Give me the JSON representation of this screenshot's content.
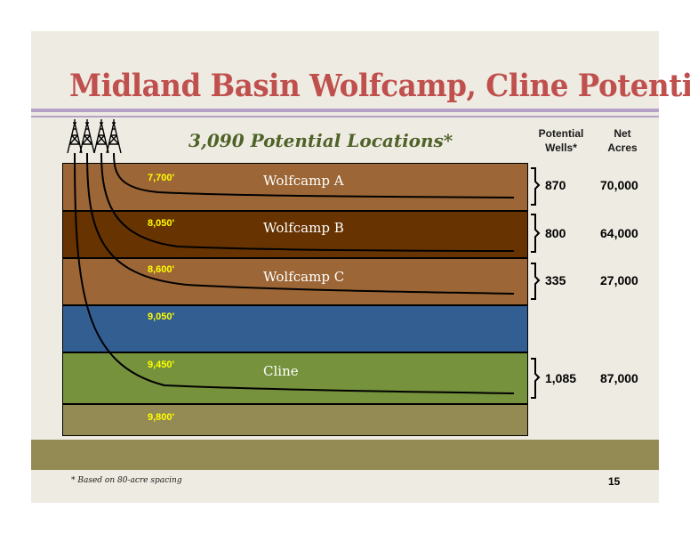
{
  "title": "Midland Basin Wolfcamp, Cline Potential",
  "subtitle": "3,090 Potential Locations*",
  "columns": {
    "potential_wells": [
      "Potential",
      "Wells*"
    ],
    "net_acres": [
      "Net",
      "Acres"
    ]
  },
  "layers": [
    {
      "depth": "7,700'",
      "zone": "Wolfcamp A",
      "color": "#9c6636",
      "wells": "870",
      "acres": "70,000"
    },
    {
      "depth": "8,050'",
      "zone": "Wolfcamp B",
      "color": "#673300",
      "wells": "800",
      "acres": "64,000"
    },
    {
      "depth": "8,600'",
      "zone": "Wolfcamp C",
      "color": "#9c6636",
      "wells": "335",
      "acres": "27,000"
    },
    {
      "depth": "9,050'",
      "zone": "",
      "color": "#325e92",
      "wells": "",
      "acres": ""
    },
    {
      "depth": "9,450'",
      "zone": "Cline",
      "color": "#76923c",
      "wells": "1,085",
      "acres": "87,000"
    },
    {
      "depth": "9,800'",
      "zone": "",
      "color": "#948a54",
      "wells": "",
      "acres": ""
    }
  ],
  "footnote": "* Based on 80-acre spacing",
  "page_number": "15",
  "icons": [
    "oil-derrick-icon",
    "oil-derrick-icon",
    "oil-derrick-icon",
    "oil-derrick-icon"
  ]
}
